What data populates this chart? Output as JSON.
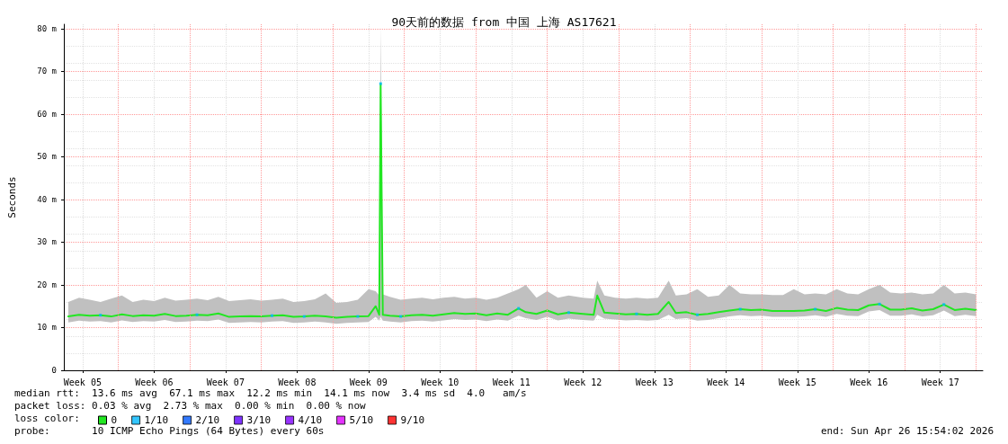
{
  "chart_data": {
    "type": "line",
    "title": "90天前的数据 from 中国 上海 AS17621",
    "ylabel": "Seconds",
    "legend_title": "loss color:",
    "legend": "bottom left",
    "marker": "none",
    "line_style": "solid",
    "grid": true,
    "xlim": [
      "2026-01-26T15:54",
      "2026-04-26T15:54"
    ],
    "xticks": [
      {
        "value": "2026-01-28T12:00",
        "label": "Week 05"
      },
      {
        "value": "2026-02-04T12:00",
        "label": "Week 06"
      },
      {
        "value": "2026-02-11T12:00",
        "label": "Week 07"
      },
      {
        "value": "2026-02-18T12:00",
        "label": "Week 08"
      },
      {
        "value": "2026-02-25T12:00",
        "label": "Week 09"
      },
      {
        "value": "2026-03-04T12:00",
        "label": "Week 10"
      },
      {
        "value": "2026-03-11T12:00",
        "label": "Week 11"
      },
      {
        "value": "2026-03-18T12:00",
        "label": "Week 12"
      },
      {
        "value": "2026-03-25T12:00",
        "label": "Week 13"
      },
      {
        "value": "2026-04-01T12:00",
        "label": "Week 14"
      },
      {
        "value": "2026-04-08T12:00",
        "label": "Week 15"
      },
      {
        "value": "2026-04-15T12:00",
        "label": "Week 16"
      },
      {
        "value": "2026-04-22T12:00",
        "label": "Week 17"
      }
    ],
    "ylim": [
      0,
      81
    ],
    "yticks": [
      0,
      {
        "value": 10,
        "label": "10 m"
      },
      {
        "value": 20,
        "label": "20 m"
      },
      {
        "value": 30,
        "label": "30 m"
      },
      {
        "value": 40,
        "label": "40 m"
      },
      {
        "value": 50,
        "label": "50 m"
      },
      {
        "value": 60,
        "label": "60 m"
      },
      {
        "value": 70,
        "label": "70 m"
      },
      {
        "value": 80,
        "label": "80 m"
      }
    ],
    "x": [
      "2026-01-27T02:24",
      "2026-01-28T03:36",
      "2026-01-29T04:48",
      "2026-01-30T06:00",
      "2026-01-31T07:12",
      "2026-02-01T08:24",
      "2026-02-02T09:36",
      "2026-02-03T10:48",
      "2026-02-04T12:00",
      "2026-02-05T13:12",
      "2026-02-06T14:24",
      "2026-02-07T15:36",
      "2026-02-08T16:48",
      "2026-02-09T18:00",
      "2026-02-10T19:12",
      "2026-02-11T20:24",
      "2026-02-12T21:36",
      "2026-02-13T22:48",
      "2026-02-15T00:00",
      "2026-02-16T01:12",
      "2026-02-17T02:24",
      "2026-02-18T03:36",
      "2026-02-19T04:48",
      "2026-02-20T06:00",
      "2026-02-21T07:12",
      "2026-02-22T08:24",
      "2026-02-23T09:36",
      "2026-02-24T10:48",
      "2026-02-25T12:00",
      "2026-02-26T04:48",
      "2026-02-26T13:12",
      "2026-02-26T16:30",
      "2026-02-26T21:36",
      "2026-02-27T14:24",
      "2026-02-28T15:36",
      "2026-03-01T16:48",
      "2026-03-02T18:00",
      "2026-03-03T19:12",
      "2026-03-04T20:24",
      "2026-03-05T21:36",
      "2026-03-06T22:48",
      "2026-03-08T00:00",
      "2026-03-09T01:12",
      "2026-03-10T02:24",
      "2026-03-11T03:36",
      "2026-03-12T04:48",
      "2026-03-12T21:36",
      "2026-03-13T22:48",
      "2026-03-15T00:00",
      "2026-03-16T01:12",
      "2026-03-17T02:24",
      "2026-03-18T12:00",
      "2026-03-19T13:12",
      "2026-03-19T21:36",
      "2026-03-20T14:24",
      "2026-03-21T15:36",
      "2026-03-22T16:48",
      "2026-03-23T18:00",
      "2026-03-24T19:12",
      "2026-03-25T20:24",
      "2026-03-26T21:36",
      "2026-03-27T14:24",
      "2026-03-28T15:36",
      "2026-03-29T16:48",
      "2026-03-30T18:00",
      "2026-03-31T19:12",
      "2026-04-01T20:24",
      "2026-04-02T21:36",
      "2026-04-03T22:48",
      "2026-04-05T00:00",
      "2026-04-06T01:12",
      "2026-04-07T02:24",
      "2026-04-08T03:36",
      "2026-04-09T04:48",
      "2026-04-10T06:00",
      "2026-04-11T07:12",
      "2026-04-12T08:24",
      "2026-04-13T09:36",
      "2026-04-14T10:48",
      "2026-04-15T12:00",
      "2026-04-16T13:12",
      "2026-04-17T14:24",
      "2026-04-18T15:36",
      "2026-04-19T16:48",
      "2026-04-20T18:00",
      "2026-04-21T19:12",
      "2026-04-22T20:24",
      "2026-04-23T21:36",
      "2026-04-24T22:48",
      "2026-04-26T00:00"
    ],
    "series": [
      {
        "name": "0",
        "color": "#22e622",
        "values": [
          12.6,
          13.0,
          12.8,
          12.9,
          12.6,
          13.1,
          12.7,
          12.9,
          12.8,
          13.2,
          12.7,
          12.8,
          13.0,
          12.9,
          13.3,
          12.5,
          12.6,
          12.7,
          12.6,
          12.8,
          12.9,
          12.5,
          12.6,
          12.8,
          12.6,
          12.3,
          12.5,
          12.6,
          12.7,
          15.0,
          13.0,
          67.1,
          13.0,
          12.8,
          12.6,
          12.9,
          13.0,
          12.8,
          13.1,
          13.4,
          13.2,
          13.3,
          12.9,
          13.3,
          13.0,
          14.5,
          13.6,
          13.2,
          14.0,
          13.1,
          13.5,
          13.2,
          13.0,
          17.5,
          13.5,
          13.3,
          13.1,
          13.2,
          13.0,
          13.2,
          16.0,
          13.4,
          13.6,
          13.0,
          13.2,
          13.6,
          14.0,
          14.3,
          14.1,
          14.2,
          13.9,
          13.9,
          13.9,
          14.0,
          14.3,
          13.9,
          14.6,
          14.2,
          14.1,
          15.2,
          15.5,
          14.2,
          14.2,
          14.5,
          14.0,
          14.3,
          15.4,
          14.1,
          14.4,
          14.1
        ],
        "lower": [
          11.2,
          11.6,
          11.4,
          11.5,
          11.2,
          11.7,
          11.3,
          11.5,
          11.4,
          11.8,
          11.3,
          11.4,
          11.6,
          11.5,
          11.9,
          11.1,
          11.2,
          11.3,
          11.2,
          11.4,
          11.5,
          11.1,
          11.2,
          11.4,
          11.2,
          10.9,
          11.1,
          11.2,
          11.3,
          12.5,
          11.6,
          12.5,
          11.6,
          11.4,
          11.2,
          11.5,
          11.6,
          11.4,
          11.7,
          12.0,
          11.8,
          11.9,
          11.5,
          11.9,
          11.6,
          12.8,
          12.2,
          11.8,
          12.5,
          11.7,
          12.1,
          11.8,
          11.6,
          13.0,
          12.1,
          11.9,
          11.7,
          11.8,
          11.6,
          11.8,
          13.0,
          12.0,
          12.2,
          11.6,
          11.8,
          12.2,
          12.6,
          12.9,
          12.7,
          12.8,
          12.5,
          12.5,
          12.5,
          12.6,
          12.9,
          12.5,
          13.2,
          12.8,
          12.7,
          13.8,
          14.1,
          12.8,
          12.8,
          13.1,
          12.6,
          12.9,
          14.0,
          12.7,
          13.0,
          12.7
        ],
        "upper": [
          16.0,
          17.0,
          16.5,
          16.0,
          16.8,
          17.5,
          16.0,
          16.5,
          16.2,
          17.0,
          16.3,
          16.5,
          16.8,
          16.4,
          17.2,
          16.2,
          16.4,
          16.6,
          16.3,
          16.5,
          16.8,
          16.0,
          16.2,
          16.6,
          18.0,
          15.8,
          16.0,
          16.5,
          19.0,
          18.5,
          17.5,
          80.5,
          17.8,
          17.2,
          16.5,
          16.8,
          17.0,
          16.6,
          17.0,
          17.2,
          16.8,
          17.0,
          16.5,
          17.0,
          18.0,
          19.0,
          20.0,
          17.0,
          18.5,
          17.0,
          17.5,
          17.0,
          16.8,
          21.0,
          17.5,
          17.0,
          16.8,
          17.0,
          16.8,
          17.0,
          21.0,
          17.5,
          17.8,
          19.0,
          17.2,
          17.5,
          20.0,
          18.0,
          17.8,
          17.8,
          17.6,
          17.6,
          19.0,
          17.8,
          18.0,
          17.8,
          19.0,
          18.0,
          17.8,
          19.0,
          20.0,
          18.2,
          18.0,
          18.2,
          17.8,
          18.0,
          20.0,
          18.0,
          18.2,
          17.8
        ]
      },
      {
        "name": "1/10",
        "color": "#00b8ff",
        "type": "scatter",
        "marker": "square",
        "x": [
          "2026-01-30T06:00",
          "2026-02-08T16:48",
          "2026-02-16T01:12",
          "2026-02-19T04:48",
          "2026-02-24T10:48",
          "2026-02-26T16:30",
          "2026-02-28T15:36",
          "2026-03-12T04:48",
          "2026-03-17T02:24",
          "2026-03-23T18:00",
          "2026-03-29T16:48",
          "2026-04-02T21:36",
          "2026-04-10T06:00",
          "2026-04-16T13:12",
          "2026-04-22T20:24"
        ],
        "values": [
          12.9,
          13.0,
          12.8,
          12.6,
          12.6,
          67.1,
          12.6,
          14.5,
          13.5,
          13.2,
          13.0,
          14.3,
          14.3,
          15.5,
          15.4
        ]
      },
      {
        "name": "2/10",
        "color": "#0059ff",
        "type": "scatter",
        "values": [
          null,
          null,
          null,
          null,
          null,
          null,
          null,
          null,
          null,
          null,
          null,
          null,
          null,
          null,
          null,
          null,
          null,
          null,
          null,
          null,
          null,
          null,
          null,
          null,
          null,
          null,
          null,
          null,
          null,
          null,
          null,
          null,
          null,
          null,
          null,
          null,
          null,
          null,
          null,
          null,
          null,
          null,
          null,
          null,
          null,
          null,
          null,
          null,
          null,
          null,
          null,
          null,
          null,
          null,
          null,
          null,
          null,
          null,
          null,
          null,
          null,
          null,
          null,
          null,
          null,
          null,
          null,
          null,
          null,
          null,
          null,
          null,
          null,
          null,
          null,
          null,
          null,
          null,
          null,
          null,
          null,
          null,
          null,
          null,
          null,
          null,
          null,
          null,
          null,
          null
        ]
      },
      {
        "name": "3/10",
        "color": "#5e00ff",
        "type": "scatter",
        "values": [
          null,
          null,
          null,
          null,
          null,
          null,
          null,
          null,
          null,
          null,
          null,
          null,
          null,
          null,
          null,
          null,
          null,
          null,
          null,
          null,
          null,
          null,
          null,
          null,
          null,
          null,
          null,
          null,
          null,
          null,
          null,
          null,
          null,
          null,
          null,
          null,
          null,
          null,
          null,
          null,
          null,
          null,
          null,
          null,
          null,
          null,
          null,
          null,
          null,
          null,
          null,
          null,
          null,
          null,
          null,
          null,
          null,
          null,
          null,
          null,
          null,
          null,
          null,
          null,
          null,
          null,
          null,
          null,
          null,
          null,
          null,
          null,
          null,
          null,
          null,
          null,
          null,
          null,
          null,
          null,
          null,
          null,
          null,
          null,
          null,
          null,
          null,
          null,
          null,
          null
        ]
      },
      {
        "name": "4/10",
        "color": "#7e00ff",
        "type": "scatter",
        "values": [
          null,
          null,
          null,
          null,
          null,
          null,
          null,
          null,
          null,
          null,
          null,
          null,
          null,
          null,
          null,
          null,
          null,
          null,
          null,
          null,
          null,
          null,
          null,
          null,
          null,
          null,
          null,
          null,
          null,
          null,
          null,
          null,
          null,
          null,
          null,
          null,
          null,
          null,
          null,
          null,
          null,
          null,
          null,
          null,
          null,
          null,
          null,
          null,
          null,
          null,
          null,
          null,
          null,
          null,
          null,
          null,
          null,
          null,
          null,
          null,
          null,
          null,
          null,
          null,
          null,
          null,
          null,
          null,
          null,
          null,
          null,
          null,
          null,
          null,
          null,
          null,
          null,
          null,
          null,
          null,
          null,
          null,
          null,
          null,
          null,
          null,
          null,
          null,
          null,
          null
        ]
      },
      {
        "name": "5/10",
        "color": "#dd00ff",
        "type": "scatter",
        "values": [
          null,
          null,
          null,
          null,
          null,
          null,
          null,
          null,
          null,
          null,
          null,
          null,
          null,
          null,
          null,
          null,
          null,
          null,
          null,
          null,
          null,
          null,
          null,
          null,
          null,
          null,
          null,
          null,
          null,
          null,
          null,
          null,
          null,
          null,
          null,
          null,
          null,
          null,
          null,
          null,
          null,
          null,
          null,
          null,
          null,
          null,
          null,
          null,
          null,
          null,
          null,
          null,
          null,
          null,
          null,
          null,
          null,
          null,
          null,
          null,
          null,
          null,
          null,
          null,
          null,
          null,
          null,
          null,
          null,
          null,
          null,
          null,
          null,
          null,
          null,
          null,
          null,
          null,
          null,
          null,
          null,
          null,
          null,
          null,
          null,
          null,
          null,
          null,
          null,
          null
        ]
      },
      {
        "name": "9/10",
        "color": "#ff0000",
        "type": "scatter",
        "values": [
          null,
          null,
          null,
          null,
          null,
          null,
          null,
          null,
          null,
          null,
          null,
          null,
          null,
          null,
          null,
          null,
          null,
          null,
          null,
          null,
          null,
          null,
          null,
          null,
          null,
          null,
          null,
          null,
          null,
          null,
          null,
          null,
          null,
          null,
          null,
          null,
          null,
          null,
          null,
          null,
          null,
          null,
          null,
          null,
          null,
          null,
          null,
          null,
          null,
          null,
          null,
          null,
          null,
          null,
          null,
          null,
          null,
          null,
          null,
          null,
          null,
          null,
          null,
          null,
          null,
          null,
          null,
          null,
          null,
          null,
          null,
          null,
          null,
          null,
          null,
          null,
          null,
          null,
          null,
          null,
          null,
          null,
          null,
          null,
          null,
          null,
          null,
          null,
          null,
          null
        ]
      }
    ],
    "ref_lines": [
      {
        "axis": "x",
        "value": "2026-02-01",
        "color": "#ff9999",
        "line_style": "dotted"
      },
      {
        "axis": "x",
        "value": "2026-02-08",
        "color": "#ff9999",
        "line_style": "dotted"
      },
      {
        "axis": "x",
        "value": "2026-02-15",
        "color": "#ff9999",
        "line_style": "dotted"
      },
      {
        "axis": "x",
        "value": "2026-02-22",
        "color": "#ff9999",
        "line_style": "dotted"
      },
      {
        "axis": "x",
        "value": "2026-03-01",
        "color": "#ff9999",
        "line_style": "dotted"
      },
      {
        "axis": "x",
        "value": "2026-03-08",
        "color": "#ff9999",
        "line_style": "dotted"
      },
      {
        "axis": "x",
        "value": "2026-03-15",
        "color": "#ff9999",
        "line_style": "dotted"
      },
      {
        "axis": "x",
        "value": "2026-03-22",
        "color": "#ff9999",
        "line_style": "dotted"
      },
      {
        "axis": "x",
        "value": "2026-03-29",
        "color": "#ff9999",
        "line_style": "dotted"
      },
      {
        "axis": "x",
        "value": "2026-04-05",
        "color": "#ff9999",
        "line_style": "dotted"
      },
      {
        "axis": "x",
        "value": "2026-04-12",
        "color": "#ff9999",
        "line_style": "dotted"
      },
      {
        "axis": "x",
        "value": "2026-04-19",
        "color": "#ff9999",
        "line_style": "dotted"
      },
      {
        "axis": "x",
        "value": "2026-04-26",
        "color": "#ff9999",
        "line_style": "dotted"
      }
    ],
    "annotations": [
      "median rtt:  13.6 ms avg  67.1 ms max  12.2 ms min  14.1 ms now  3.4 ms sd  4.0   am/s",
      "packet loss: 0.03 % avg  2.73 % max  0.00 % min  0.00 % now",
      "probe:       10 ICMP Echo Pings (64 Bytes) every 60s",
      "end: Sun Apr 26 15:54:02 2026"
    ]
  }
}
